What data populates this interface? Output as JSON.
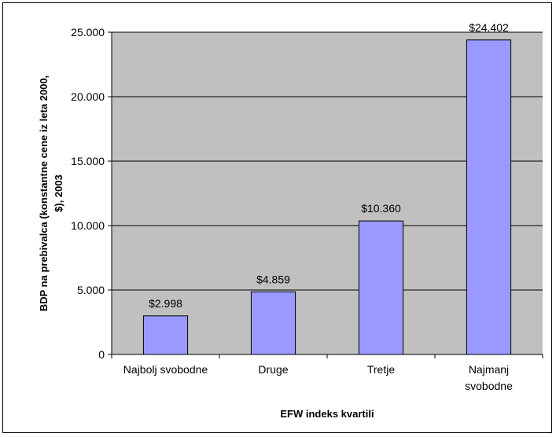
{
  "chart_data": {
    "type": "bar",
    "categories": [
      [
        "Najbolj svobodne"
      ],
      [
        "Druge"
      ],
      [
        "Tretje"
      ],
      [
        "Najmanj",
        "svobodne"
      ]
    ],
    "values": [
      2998,
      4859,
      10360,
      24402
    ],
    "data_labels": [
      "$2.998",
      "$4.859",
      "$10.360",
      "$24.402"
    ],
    "xlabel": "EFW indeks kvartili",
    "ylabel_lines": [
      "BDP na prebivalca (konstantne cene iz leta 2000,",
      "$), 2003"
    ],
    "ylim": [
      0,
      25000
    ],
    "yticks": [
      0,
      5000,
      10000,
      15000,
      20000,
      25000
    ],
    "ytick_labels": [
      "0",
      "5.000",
      "10.000",
      "15.000",
      "20.000",
      "25.000"
    ],
    "grid": true,
    "colors": {
      "plot_background": "#c0c0c0",
      "bar_fill": "#9999ff",
      "bar_stroke": "#000000",
      "gridline": "#000000"
    }
  }
}
